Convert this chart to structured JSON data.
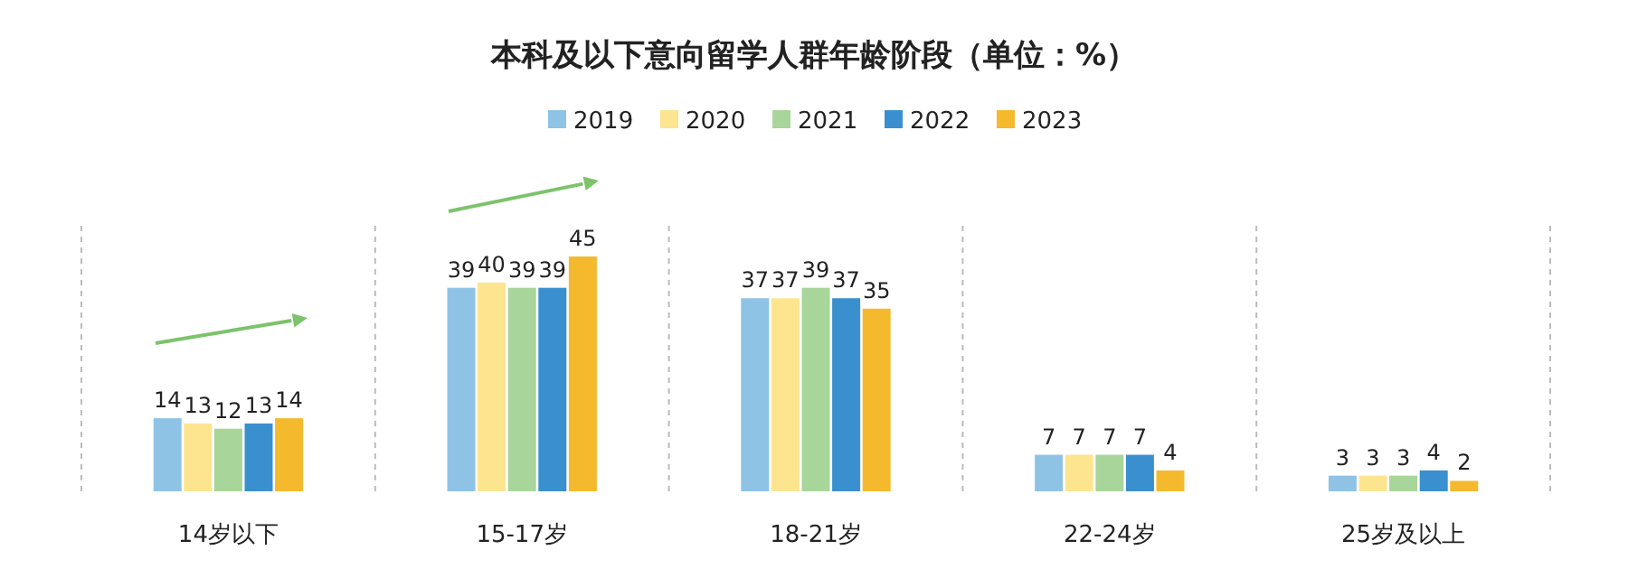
{
  "chart_data": {
    "type": "bar",
    "title": "本科及以下意向留学人群年龄阶段（单位：%）",
    "categories": [
      "14岁以下",
      "15-17岁",
      "18-21岁",
      "22-24岁",
      "25岁及以上"
    ],
    "series": [
      {
        "name": "2019",
        "color": "#8fc3e6",
        "values": [
          14,
          39,
          37,
          7,
          3
        ]
      },
      {
        "name": "2020",
        "color": "#fde48f",
        "values": [
          13,
          40,
          37,
          7,
          3
        ]
      },
      {
        "name": "2021",
        "color": "#a8d59a",
        "values": [
          12,
          39,
          39,
          7,
          3
        ]
      },
      {
        "name": "2022",
        "color": "#3a8fcf",
        "values": [
          13,
          39,
          37,
          7,
          4
        ]
      },
      {
        "name": "2023",
        "color": "#f5b92e",
        "values": [
          14,
          45,
          35,
          4,
          2
        ]
      }
    ],
    "data_labels": true,
    "legend": "top",
    "grid": "x"
  }
}
